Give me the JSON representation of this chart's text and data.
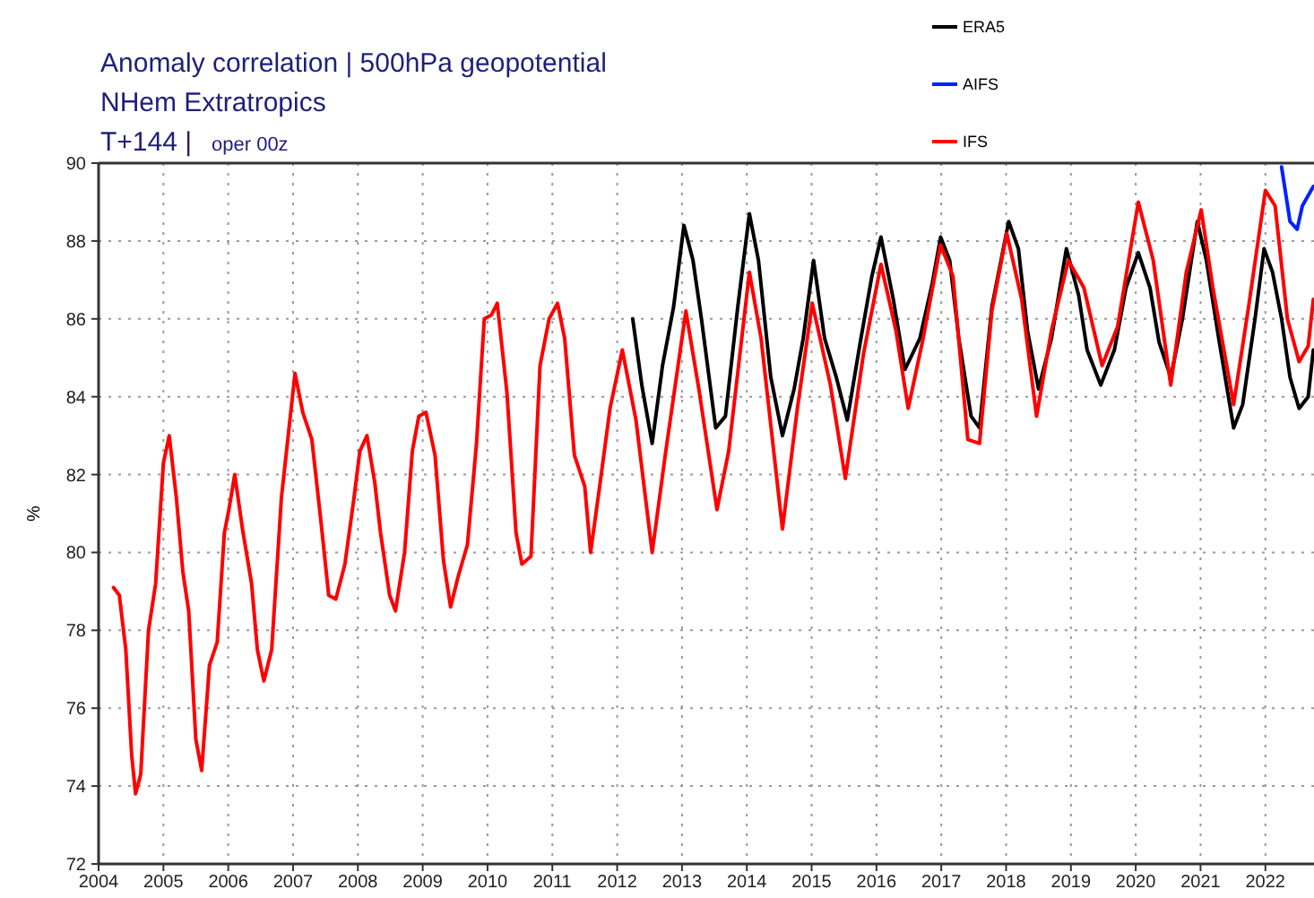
{
  "chart_data": [
    {
      "type": "line",
      "title": "Anomaly correlation | 500hPa geopotential",
      "subtitle": "NHem Extratropics",
      "annotations": [
        "T+144 |",
        "oper 00z"
      ],
      "ylabel": "%",
      "xlim": [
        2004,
        2022.75
      ],
      "xticks": [
        2004,
        2005,
        2006,
        2007,
        2008,
        2009,
        2010,
        2011,
        2012,
        2013,
        2014,
        2015,
        2016,
        2017,
        2018,
        2019,
        2020,
        2021,
        2022
      ],
      "ylim": [
        72,
        90
      ],
      "yticks": [
        72,
        74,
        76,
        78,
        80,
        82,
        84,
        86,
        88,
        90
      ],
      "grid": true,
      "legend": "top right",
      "line_style": "solid",
      "series": [
        {
          "name": "ERA5",
          "color": "#000000",
          "x": [
            2012.24,
            2012.38,
            2012.54,
            2012.7,
            2012.87,
            2013.03,
            2013.17,
            2013.3,
            2013.52,
            2013.67,
            2013.86,
            2014.04,
            2014.18,
            2014.37,
            2014.55,
            2014.73,
            2014.87,
            2015.03,
            2015.2,
            2015.38,
            2015.55,
            2015.75,
            2015.93,
            2016.07,
            2016.26,
            2016.44,
            2016.67,
            2016.86,
            2016.99,
            2017.13,
            2017.27,
            2017.46,
            2017.59,
            2017.78,
            2018.04,
            2018.19,
            2018.33,
            2018.5,
            2018.7,
            2018.93,
            2019.12,
            2019.25,
            2019.46,
            2019.67,
            2019.85,
            2020.04,
            2020.22,
            2020.36,
            2020.54,
            2020.72,
            2020.95,
            2021.09,
            2021.28,
            2021.51,
            2021.65,
            2021.84,
            2021.98,
            2022.11,
            2022.25,
            2022.38,
            2022.52,
            2022.66,
            2022.74
          ],
          "values": [
            86.0,
            84.3,
            82.8,
            84.8,
            86.3,
            88.4,
            87.5,
            86.0,
            83.2,
            83.5,
            86.3,
            88.7,
            87.5,
            84.5,
            83.0,
            84.2,
            85.5,
            87.5,
            85.5,
            84.5,
            83.4,
            85.4,
            87.1,
            88.1,
            86.5,
            84.7,
            85.5,
            86.9,
            88.1,
            87.5,
            85.5,
            83.5,
            83.2,
            86.3,
            88.5,
            87.8,
            85.7,
            84.2,
            85.5,
            87.8,
            86.6,
            85.2,
            84.3,
            85.2,
            86.8,
            87.7,
            86.8,
            85.4,
            84.5,
            86.0,
            88.5,
            87.5,
            85.5,
            83.2,
            83.8,
            86.0,
            87.8,
            87.2,
            86.0,
            84.5,
            83.7,
            84.0,
            85.2
          ]
        },
        {
          "name": "AIFS",
          "color": "#0022ff",
          "x": [
            2022.25,
            2022.38,
            2022.49,
            2022.57,
            2022.74
          ],
          "values": [
            89.9,
            88.5,
            88.3,
            88.9,
            89.4
          ]
        },
        {
          "name": "IFS",
          "color": "#ff0000",
          "x": [
            2004.23,
            2004.32,
            2004.42,
            2004.51,
            2004.57,
            2004.65,
            2004.77,
            2004.88,
            2005.0,
            2005.09,
            2005.2,
            2005.3,
            2005.39,
            2005.5,
            2005.59,
            2005.71,
            2005.83,
            2005.94,
            2006.01,
            2006.1,
            2006.22,
            2006.36,
            2006.45,
            2006.55,
            2006.67,
            2006.82,
            2007.03,
            2007.15,
            2007.29,
            2007.43,
            2007.55,
            2007.66,
            2007.8,
            2007.94,
            2008.03,
            2008.14,
            2008.26,
            2008.35,
            2008.49,
            2008.58,
            2008.72,
            2008.84,
            2008.94,
            2009.05,
            2009.19,
            2009.32,
            2009.43,
            2009.55,
            2009.69,
            2009.83,
            2009.95,
            2010.06,
            2010.15,
            2010.3,
            2010.44,
            2010.53,
            2010.67,
            2010.81,
            2010.95,
            2011.08,
            2011.19,
            2011.34,
            2011.5,
            2011.59,
            2011.73,
            2011.89,
            2012.08,
            2012.29,
            2012.54,
            2012.75,
            2013.06,
            2013.26,
            2013.54,
            2013.72,
            2014.04,
            2014.22,
            2014.55,
            2014.78,
            2015.01,
            2015.29,
            2015.52,
            2015.8,
            2016.07,
            2016.3,
            2016.49,
            2016.72,
            2016.99,
            2017.18,
            2017.41,
            2017.59,
            2017.78,
            2018.01,
            2018.24,
            2018.47,
            2018.7,
            2018.96,
            2019.2,
            2019.48,
            2019.72,
            2020.04,
            2020.27,
            2020.54,
            2020.78,
            2021.01,
            2021.19,
            2021.51,
            2021.74,
            2022.0,
            2022.15,
            2022.34,
            2022.52,
            2022.66,
            2022.74
          ],
          "values": [
            79.1,
            78.9,
            77.5,
            74.8,
            73.8,
            74.3,
            78.0,
            79.2,
            82.3,
            83.0,
            81.4,
            79.5,
            78.5,
            75.2,
            74.4,
            77.1,
            77.7,
            80.5,
            81.1,
            82.0,
            80.6,
            79.2,
            77.5,
            76.7,
            77.5,
            81.4,
            84.6,
            83.6,
            82.9,
            80.8,
            78.9,
            78.8,
            79.7,
            81.4,
            82.6,
            83.0,
            81.8,
            80.5,
            78.9,
            78.5,
            80.0,
            82.6,
            83.5,
            83.6,
            82.5,
            79.8,
            78.6,
            79.4,
            80.2,
            82.8,
            86.0,
            86.1,
            86.4,
            84.1,
            80.5,
            79.7,
            79.9,
            84.8,
            86.0,
            86.4,
            85.5,
            82.5,
            81.7,
            80.0,
            81.7,
            83.7,
            85.2,
            83.4,
            80.0,
            82.6,
            86.2,
            84.2,
            81.1,
            82.6,
            87.2,
            85.5,
            80.6,
            83.7,
            86.4,
            84.3,
            81.9,
            85.1,
            87.4,
            85.7,
            83.7,
            85.5,
            87.9,
            87.1,
            82.9,
            82.8,
            86.2,
            88.2,
            86.5,
            83.5,
            85.7,
            87.5,
            86.8,
            84.8,
            85.8,
            89.0,
            87.5,
            84.3,
            87.2,
            88.8,
            86.8,
            83.8,
            86.3,
            89.3,
            88.9,
            86.0,
            84.9,
            85.3,
            86.5
          ]
        }
      ]
    }
  ]
}
